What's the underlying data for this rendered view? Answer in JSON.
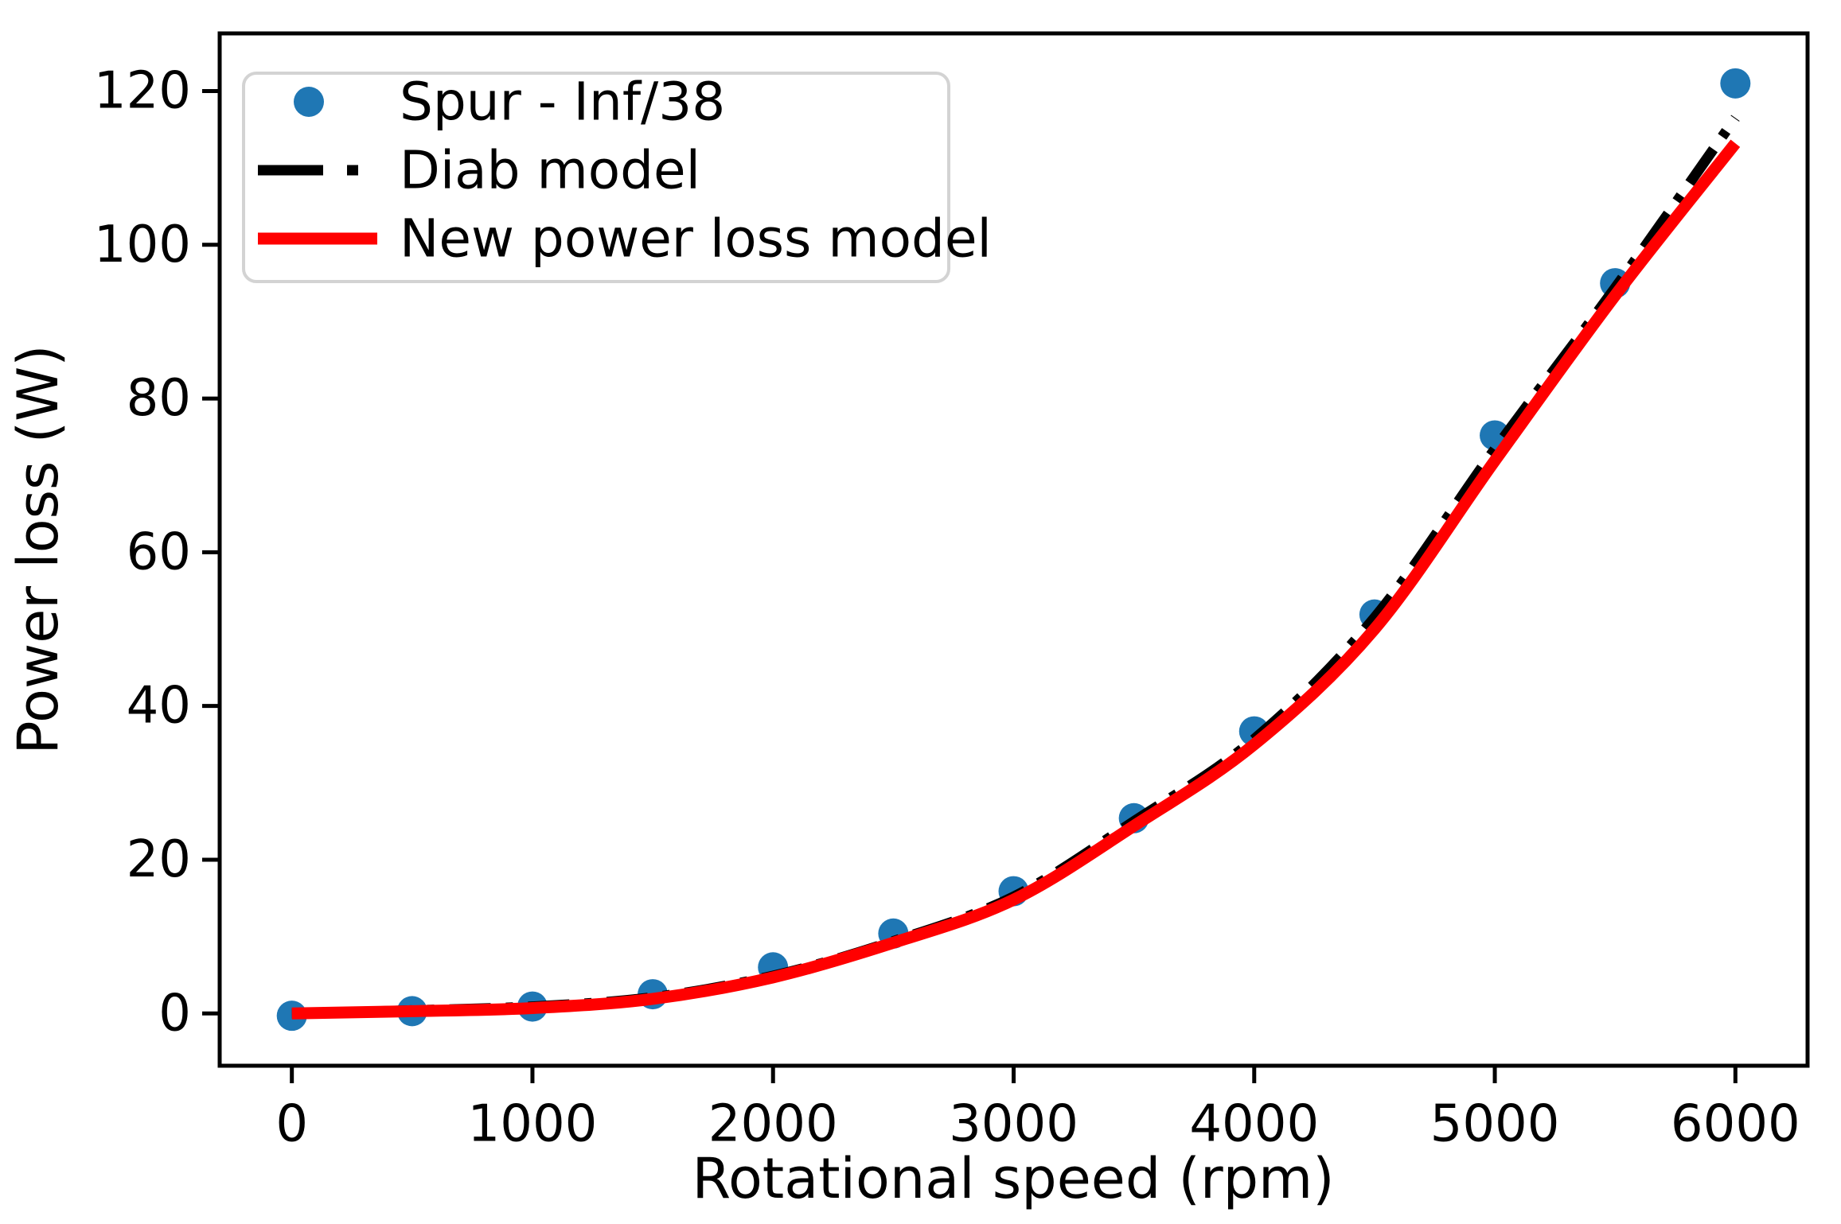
{
  "chart_data": {
    "type": "scatter+line",
    "title": "",
    "xlabel": "Rotational speed (rpm)",
    "ylabel": "Power loss (W)",
    "x": [
      0,
      500,
      1000,
      1500,
      2000,
      2500,
      3000,
      3500,
      4000,
      4500,
      5000,
      5500,
      6000
    ],
    "series": [
      {
        "name": "Spur - Inf/38",
        "kind": "scatter",
        "color": "#1f77b4",
        "values": [
          -0.3,
          0.3,
          0.9,
          2.5,
          6.0,
          10.4,
          15.9,
          25.4,
          36.7,
          51.9,
          75.2,
          95.0,
          121.0
        ]
      },
      {
        "name": "Diab model",
        "kind": "line",
        "linestyle": "dashdot",
        "color": "#000000",
        "values": [
          0.0,
          0.4,
          0.9,
          2.1,
          4.9,
          9.4,
          15.2,
          25.0,
          35.7,
          51.5,
          73.4,
          94.4,
          116.5
        ]
      },
      {
        "name": "New power loss model",
        "kind": "line",
        "linestyle": "solid",
        "color": "#ff0000",
        "values": [
          0.0,
          0.3,
          0.7,
          1.9,
          4.7,
          9.2,
          14.8,
          24.4,
          35.0,
          50.0,
          71.9,
          93.4,
          113.2
        ]
      }
    ],
    "xticks": [
      0,
      1000,
      2000,
      3000,
      4000,
      5000,
      6000
    ],
    "yticks": [
      0,
      20,
      40,
      60,
      80,
      100,
      120
    ],
    "xlim": [
      -300,
      6300
    ],
    "ylim": [
      -6.8,
      127.5
    ],
    "grid": false,
    "legend_position": "upper left",
    "legend_border_color": "#d3d3d3",
    "background_color": "#ffffff"
  }
}
